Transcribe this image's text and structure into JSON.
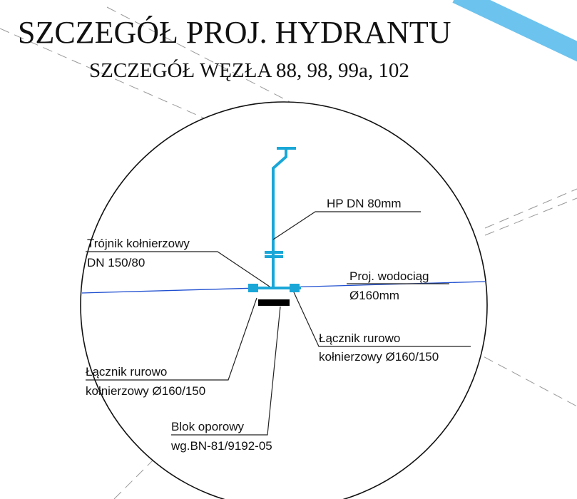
{
  "header": {
    "title": "SZCZEGÓŁ PROJ. HYDRANTU",
    "subtitle": "SZCZEGÓŁ WĘZŁA 88, 98, 99a, 102"
  },
  "labels": [
    {
      "lines": [
        "HP DN 80mm"
      ]
    },
    {
      "lines": [
        "Trójnik kołnierzowy",
        "DN 150/80"
      ]
    },
    {
      "lines": [
        "Proj. wodociąg",
        "Ø160mm"
      ]
    },
    {
      "lines": [
        "Łącznik rurowo",
        "kołnierzowy Ø160/150"
      ]
    },
    {
      "lines": [
        "Łącznik rurowo",
        "kołnierzowy Ø160/150"
      ]
    },
    {
      "lines": [
        "Blok oporowy",
        "wg.BN-81/9192-05"
      ]
    }
  ]
}
